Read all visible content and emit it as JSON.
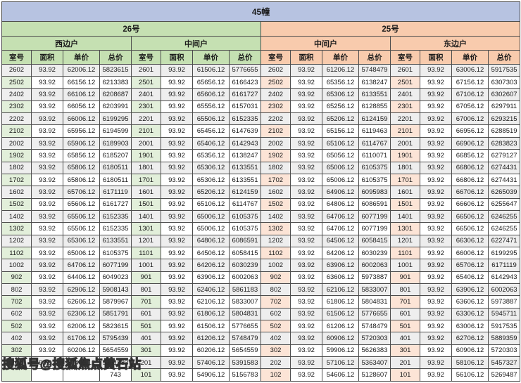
{
  "title": "45幢",
  "watermark": "搜狐号@搜狐焦点黄石站",
  "colors": {
    "title_bg": "#b7c3e1",
    "building_26_bg": "#c5e0b2",
    "building_26_room_bg": "#e2efda",
    "building_25_bg": "#f8cbad",
    "building_25_room_bg": "#fce4d6",
    "border": "#4d4d4d",
    "stripe": "#eeeeee"
  },
  "buildings": [
    {
      "name": "26号"
    },
    {
      "name": "25号"
    }
  ],
  "columns": [
    "室号",
    "面积",
    "单价",
    "总价"
  ],
  "groups": [
    {
      "building": "26号",
      "unit": "西边户",
      "rows": [
        [
          "2602",
          "93.92",
          "62006.12",
          "5823615"
        ],
        [
          "2502",
          "93.92",
          "66156.12",
          "6213383"
        ],
        [
          "2402",
          "93.92",
          "66106.12",
          "6208687"
        ],
        [
          "2302",
          "93.92",
          "66056.12",
          "6203991"
        ],
        [
          "2202",
          "93.92",
          "66006.12",
          "6199295"
        ],
        [
          "2102",
          "93.92",
          "65956.12",
          "6194599"
        ],
        [
          "2002",
          "93.92",
          "65906.12",
          "6189903"
        ],
        [
          "1902",
          "93.92",
          "65856.12",
          "6185207"
        ],
        [
          "1802",
          "93.92",
          "65806.12",
          "6180511"
        ],
        [
          "1702",
          "93.92",
          "65806.12",
          "6180511"
        ],
        [
          "1602",
          "93.92",
          "65706.12",
          "6171119"
        ],
        [
          "1502",
          "93.92",
          "65606.12",
          "6161727"
        ],
        [
          "1402",
          "93.92",
          "65506.12",
          "6152335"
        ],
        [
          "1302",
          "93.92",
          "65506.12",
          "6152335"
        ],
        [
          "1202",
          "93.92",
          "65306.12",
          "6133551"
        ],
        [
          "1102",
          "93.92",
          "65006.12",
          "6105375"
        ],
        [
          "1002",
          "93.92",
          "64706.12",
          "6077199"
        ],
        [
          "902",
          "93.92",
          "64406.12",
          "6049023"
        ],
        [
          "802",
          "93.92",
          "62906.12",
          "5908143"
        ],
        [
          "702",
          "93.92",
          "62606.12",
          "5879967"
        ],
        [
          "602",
          "93.92",
          "62306.12",
          "5851791"
        ],
        [
          "502",
          "93.92",
          "62006.12",
          "5823615"
        ],
        [
          "402",
          "93.92",
          "61706.12",
          "5795439"
        ],
        [
          "302",
          "93.92",
          "60206.12",
          "5654559"
        ],
        [
          "202",
          "93.92",
          "57406.12",
          "5391583"
        ],
        [
          "",
          "",
          "",
          "743"
        ]
      ]
    },
    {
      "building": "26号",
      "unit": "中间户",
      "rows": [
        [
          "2601",
          "93.92",
          "61506.12",
          "5776655"
        ],
        [
          "2501",
          "93.92",
          "65656.12",
          "6166423"
        ],
        [
          "2401",
          "93.92",
          "65606.12",
          "6161727"
        ],
        [
          "2301",
          "93.92",
          "65556.12",
          "6157031"
        ],
        [
          "2201",
          "93.92",
          "65506.12",
          "6152335"
        ],
        [
          "2101",
          "93.92",
          "65456.12",
          "6147639"
        ],
        [
          "2001",
          "93.92",
          "65406.12",
          "6142943"
        ],
        [
          "1901",
          "93.92",
          "65356.12",
          "6138247"
        ],
        [
          "1801",
          "93.92",
          "65306.12",
          "6133551"
        ],
        [
          "1701",
          "93.92",
          "65306.12",
          "6133551"
        ],
        [
          "1601",
          "93.92",
          "65206.12",
          "6124159"
        ],
        [
          "1501",
          "93.92",
          "65106.12",
          "6114767"
        ],
        [
          "1401",
          "93.92",
          "65006.12",
          "6105375"
        ],
        [
          "1301",
          "93.92",
          "65006.12",
          "6105375"
        ],
        [
          "1201",
          "93.92",
          "64806.12",
          "6086591"
        ],
        [
          "1101",
          "93.92",
          "64506.12",
          "6058415"
        ],
        [
          "1001",
          "93.92",
          "64206.12",
          "6030239"
        ],
        [
          "901",
          "93.92",
          "63906.12",
          "6002063"
        ],
        [
          "801",
          "93.92",
          "62406.12",
          "5861183"
        ],
        [
          "701",
          "93.92",
          "62106.12",
          "5833007"
        ],
        [
          "601",
          "93.92",
          "61806.12",
          "5804831"
        ],
        [
          "501",
          "93.92",
          "61506.12",
          "5776655"
        ],
        [
          "401",
          "93.92",
          "61206.12",
          "5748479"
        ],
        [
          "301",
          "93.92",
          "60206.12",
          "5654559"
        ],
        [
          "201",
          "93.92",
          "57406.12",
          "5391583"
        ],
        [
          "101",
          "93.92",
          "54906.12",
          "5156783"
        ]
      ]
    },
    {
      "building": "25号",
      "unit": "中间户",
      "rows": [
        [
          "2602",
          "93.92",
          "61206.12",
          "5748479"
        ],
        [
          "2502",
          "93.92",
          "65356.12",
          "6138247"
        ],
        [
          "2402",
          "93.92",
          "65306.12",
          "6133551"
        ],
        [
          "2302",
          "93.92",
          "65256.12",
          "6128855"
        ],
        [
          "2202",
          "93.92",
          "65206.12",
          "6124159"
        ],
        [
          "2102",
          "93.92",
          "65156.12",
          "6119463"
        ],
        [
          "2002",
          "93.92",
          "65106.12",
          "6114767"
        ],
        [
          "1902",
          "93.92",
          "65056.12",
          "6110071"
        ],
        [
          "1802",
          "93.92",
          "65006.12",
          "6105375"
        ],
        [
          "1702",
          "93.92",
          "65006.12",
          "6105375"
        ],
        [
          "1602",
          "93.92",
          "64906.12",
          "6095983"
        ],
        [
          "1502",
          "93.92",
          "64806.12",
          "6086591"
        ],
        [
          "1402",
          "93.92",
          "64706.12",
          "6077199"
        ],
        [
          "1302",
          "93.92",
          "64706.12",
          "6077199"
        ],
        [
          "1202",
          "93.92",
          "64506.12",
          "6058415"
        ],
        [
          "1102",
          "93.92",
          "64206.12",
          "6030239"
        ],
        [
          "1002",
          "93.92",
          "63906.12",
          "6002063"
        ],
        [
          "902",
          "93.92",
          "63606.12",
          "5973887"
        ],
        [
          "802",
          "93.92",
          "62106.12",
          "5833007"
        ],
        [
          "702",
          "93.92",
          "61806.12",
          "5804831"
        ],
        [
          "602",
          "93.92",
          "61506.12",
          "5776655"
        ],
        [
          "502",
          "93.92",
          "61206.12",
          "5748479"
        ],
        [
          "402",
          "93.92",
          "60906.12",
          "5720303"
        ],
        [
          "302",
          "93.92",
          "59906.12",
          "5626383"
        ],
        [
          "202",
          "93.92",
          "57106.12",
          "5363407"
        ],
        [
          "102",
          "93.92",
          "54606.12",
          "5128607"
        ]
      ]
    },
    {
      "building": "25号",
      "unit": "东边户",
      "rows": [
        [
          "2601",
          "93.92",
          "63006.12",
          "5917535"
        ],
        [
          "2501",
          "93.92",
          "67156.12",
          "6307303"
        ],
        [
          "2401",
          "93.92",
          "67106.12",
          "6302607"
        ],
        [
          "2301",
          "93.92",
          "67056.12",
          "6297911"
        ],
        [
          "2201",
          "93.92",
          "67006.12",
          "6293215"
        ],
        [
          "2101",
          "93.92",
          "66956.12",
          "6288519"
        ],
        [
          "2001",
          "93.92",
          "66906.12",
          "6283823"
        ],
        [
          "1901",
          "93.92",
          "66856.12",
          "6279127"
        ],
        [
          "1801",
          "93.92",
          "66806.12",
          "6274431"
        ],
        [
          "1701",
          "93.92",
          "66806.12",
          "6274431"
        ],
        [
          "1601",
          "93.92",
          "66706.12",
          "6265039"
        ],
        [
          "1501",
          "93.92",
          "66606.12",
          "6255647"
        ],
        [
          "1401",
          "93.92",
          "66506.12",
          "6246255"
        ],
        [
          "1301",
          "93.92",
          "66506.12",
          "6246255"
        ],
        [
          "1201",
          "93.92",
          "66306.12",
          "6227471"
        ],
        [
          "1101",
          "93.92",
          "66006.12",
          "6199295"
        ],
        [
          "1001",
          "93.92",
          "65706.12",
          "6171119"
        ],
        [
          "901",
          "93.92",
          "65406.12",
          "6142943"
        ],
        [
          "801",
          "93.92",
          "63906.12",
          "6002063"
        ],
        [
          "701",
          "93.92",
          "63606.12",
          "5973887"
        ],
        [
          "601",
          "93.92",
          "63306.12",
          "5945711"
        ],
        [
          "501",
          "93.92",
          "63006.12",
          "5917535"
        ],
        [
          "401",
          "93.92",
          "62706.12",
          "5889359"
        ],
        [
          "301",
          "93.92",
          "60906.12",
          "5720303"
        ],
        [
          "201",
          "93.92",
          "58106.12",
          "5457327"
        ],
        [
          "101",
          "93.92",
          "56106.12",
          "5269487"
        ]
      ]
    }
  ]
}
